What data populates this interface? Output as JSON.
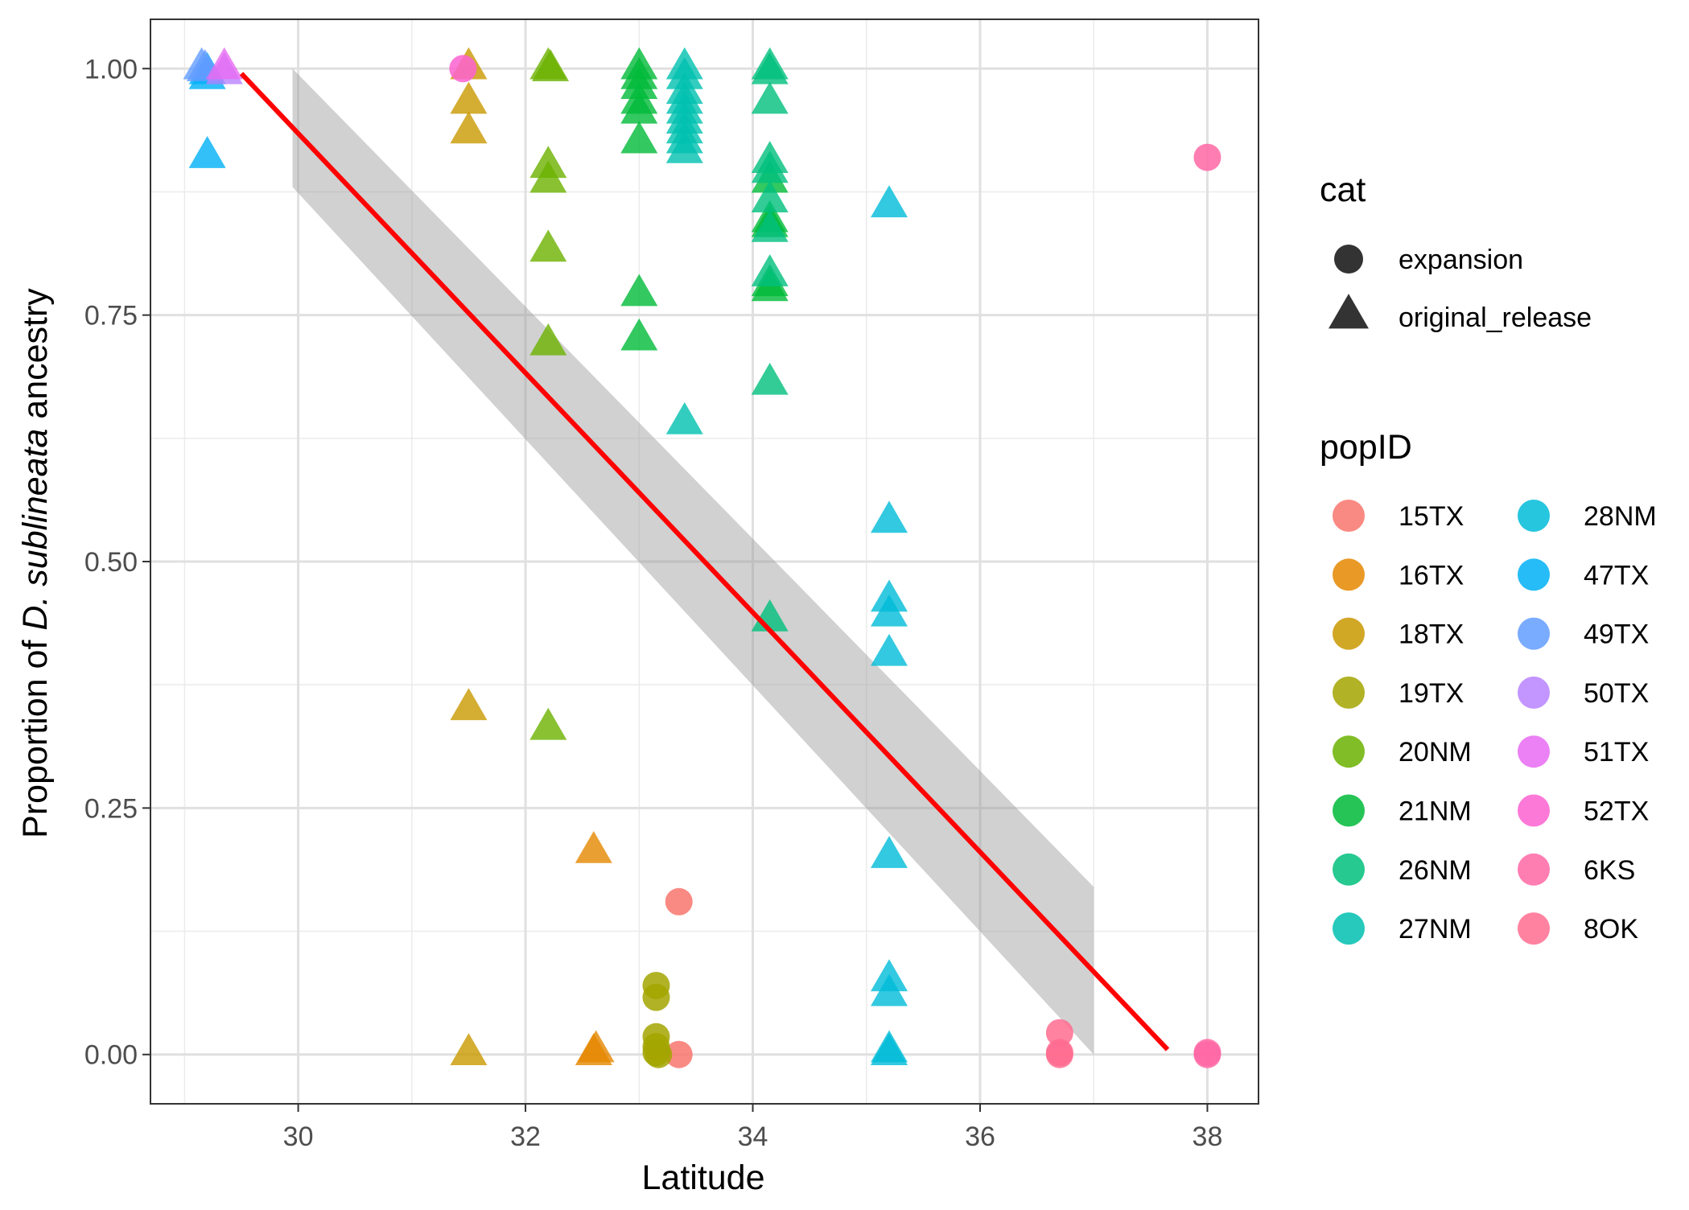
{
  "chart_data": {
    "type": "scatter",
    "title": "",
    "xlabel": "Latitude",
    "ylabel_prefix": "Proportion of ",
    "ylabel_species": "D. sublineata",
    "ylabel_suffix": " ancestry",
    "xlim": [
      28.7,
      38.45
    ],
    "ylim": [
      -0.05,
      1.05
    ],
    "x_ticks": [
      30,
      32,
      34,
      36,
      38
    ],
    "x_minor_ticks": [
      29,
      31,
      33,
      35,
      37
    ],
    "y_ticks": [
      0,
      0.25,
      0.5,
      0.75,
      1
    ],
    "y_minor_ticks": [
      0.125,
      0.375,
      0.625,
      0.875
    ],
    "x_tick_labels": [
      "30",
      "32",
      "34",
      "36",
      "38"
    ],
    "y_tick_labels": [
      "0.00",
      "0.25",
      "0.50",
      "0.75",
      "1.00"
    ],
    "grid": true,
    "legend_cat": {
      "title": "cat",
      "entries": [
        {
          "label": "expansion",
          "shape": "circle"
        },
        {
          "label": "original_release",
          "shape": "triangle"
        }
      ]
    },
    "legend_pop": {
      "title": "popID",
      "entries": [
        {
          "label": "15TX",
          "color": "#F8766D"
        },
        {
          "label": "16TX",
          "color": "#E58700"
        },
        {
          "label": "18TX",
          "color": "#C99800"
        },
        {
          "label": "19TX",
          "color": "#A3A500"
        },
        {
          "label": "20NM",
          "color": "#6BB100"
        },
        {
          "label": "21NM",
          "color": "#00BA38"
        },
        {
          "label": "26NM",
          "color": "#00BF7D"
        },
        {
          "label": "27NM",
          "color": "#00C0AF"
        },
        {
          "label": "28NM",
          "color": "#00BCD8"
        },
        {
          "label": "47TX",
          "color": "#00B0F6"
        },
        {
          "label": "49TX",
          "color": "#619CFF"
        },
        {
          "label": "50TX",
          "color": "#B983FF"
        },
        {
          "label": "51TX",
          "color": "#E76BF3"
        },
        {
          "label": "52TX",
          "color": "#FD61D1"
        },
        {
          "label": "6KS",
          "color": "#FF67A4"
        },
        {
          "label": "8OK",
          "color": "#FF6C91"
        }
      ]
    },
    "regression": {
      "x_start": 29.5,
      "y_start": 0.995,
      "x_end": 37.65,
      "y_end": 0.005,
      "ci_band": [
        {
          "x": 29.95,
          "lo": 0.88,
          "hi": 1.0
        },
        {
          "x": 37.0,
          "lo": 0.0,
          "hi": 0.17
        }
      ],
      "color": "#FF0000"
    },
    "series": [
      {
        "name": "15TX",
        "color": "#F8766D",
        "points": [
          {
            "x": 33.35,
            "y": 0.155,
            "shape": "circle"
          },
          {
            "x": 33.35,
            "y": 0.0,
            "shape": "circle"
          }
        ]
      },
      {
        "name": "16TX",
        "color": "#E58700",
        "points": [
          {
            "x": 32.6,
            "y": 0.205,
            "shape": "triangle"
          },
          {
            "x": 32.6,
            "y": 0.0,
            "shape": "triangle"
          },
          {
            "x": 32.62,
            "y": 0.003,
            "shape": "triangle"
          }
        ]
      },
      {
        "name": "18TX",
        "color": "#C99800",
        "points": [
          {
            "x": 31.5,
            "y": 1.0,
            "shape": "triangle"
          },
          {
            "x": 31.5,
            "y": 0.965,
            "shape": "triangle"
          },
          {
            "x": 31.5,
            "y": 0.935,
            "shape": "triangle"
          },
          {
            "x": 31.5,
            "y": 0.35,
            "shape": "triangle"
          },
          {
            "x": 31.5,
            "y": 0.0,
            "shape": "triangle"
          }
        ]
      },
      {
        "name": "19TX",
        "color": "#A3A500",
        "points": [
          {
            "x": 33.15,
            "y": 0.07,
            "shape": "circle"
          },
          {
            "x": 33.15,
            "y": 0.058,
            "shape": "circle"
          },
          {
            "x": 33.15,
            "y": 0.018,
            "shape": "circle"
          },
          {
            "x": 33.15,
            "y": 0.008,
            "shape": "circle"
          },
          {
            "x": 33.15,
            "y": 0.002,
            "shape": "circle"
          },
          {
            "x": 33.17,
            "y": 0.0,
            "shape": "circle"
          }
        ]
      },
      {
        "name": "20NM",
        "color": "#6BB100",
        "points": [
          {
            "x": 32.2,
            "y": 1.0,
            "shape": "triangle"
          },
          {
            "x": 32.22,
            "y": 0.998,
            "shape": "triangle"
          },
          {
            "x": 32.2,
            "y": 0.9,
            "shape": "triangle"
          },
          {
            "x": 32.2,
            "y": 0.885,
            "shape": "triangle"
          },
          {
            "x": 32.2,
            "y": 0.815,
            "shape": "triangle"
          },
          {
            "x": 32.2,
            "y": 0.72,
            "shape": "triangle"
          },
          {
            "x": 32.2,
            "y": 0.33,
            "shape": "triangle"
          }
        ]
      },
      {
        "name": "21NM",
        "color": "#00BA38",
        "points": [
          {
            "x": 33.0,
            "y": 1.0,
            "shape": "triangle"
          },
          {
            "x": 33.0,
            "y": 0.99,
            "shape": "triangle"
          },
          {
            "x": 33.0,
            "y": 0.98,
            "shape": "triangle"
          },
          {
            "x": 33.0,
            "y": 0.965,
            "shape": "triangle"
          },
          {
            "x": 33.0,
            "y": 0.955,
            "shape": "triangle"
          },
          {
            "x": 33.0,
            "y": 0.925,
            "shape": "triangle"
          },
          {
            "x": 33.0,
            "y": 0.77,
            "shape": "triangle"
          },
          {
            "x": 33.0,
            "y": 0.725,
            "shape": "triangle"
          },
          {
            "x": 34.15,
            "y": 0.885,
            "shape": "triangle"
          },
          {
            "x": 34.15,
            "y": 0.845,
            "shape": "triangle"
          },
          {
            "x": 34.15,
            "y": 0.84,
            "shape": "triangle"
          },
          {
            "x": 34.15,
            "y": 0.78,
            "shape": "triangle"
          },
          {
            "x": 34.15,
            "y": 0.775,
            "shape": "triangle"
          }
        ]
      },
      {
        "name": "26NM",
        "color": "#00BF7D",
        "points": [
          {
            "x": 34.15,
            "y": 1.0,
            "shape": "triangle"
          },
          {
            "x": 34.15,
            "y": 0.995,
            "shape": "triangle"
          },
          {
            "x": 34.15,
            "y": 0.965,
            "shape": "triangle"
          },
          {
            "x": 34.15,
            "y": 0.905,
            "shape": "triangle"
          },
          {
            "x": 34.15,
            "y": 0.895,
            "shape": "triangle"
          },
          {
            "x": 34.15,
            "y": 0.865,
            "shape": "triangle"
          },
          {
            "x": 34.15,
            "y": 0.835,
            "shape": "triangle"
          },
          {
            "x": 34.15,
            "y": 0.79,
            "shape": "triangle"
          },
          {
            "x": 34.15,
            "y": 0.68,
            "shape": "triangle"
          },
          {
            "x": 34.15,
            "y": 0.44,
            "shape": "triangle"
          }
        ]
      },
      {
        "name": "27NM",
        "color": "#00C0AF",
        "points": [
          {
            "x": 33.4,
            "y": 1.0,
            "shape": "triangle"
          },
          {
            "x": 33.4,
            "y": 0.99,
            "shape": "triangle"
          },
          {
            "x": 33.4,
            "y": 0.975,
            "shape": "triangle"
          },
          {
            "x": 33.4,
            "y": 0.965,
            "shape": "triangle"
          },
          {
            "x": 33.4,
            "y": 0.955,
            "shape": "triangle"
          },
          {
            "x": 33.4,
            "y": 0.945,
            "shape": "triangle"
          },
          {
            "x": 33.4,
            "y": 0.935,
            "shape": "triangle"
          },
          {
            "x": 33.4,
            "y": 0.925,
            "shape": "triangle"
          },
          {
            "x": 33.4,
            "y": 0.915,
            "shape": "triangle"
          },
          {
            "x": 33.4,
            "y": 0.64,
            "shape": "triangle"
          }
        ]
      },
      {
        "name": "28NM",
        "color": "#00BCD8",
        "points": [
          {
            "x": 35.2,
            "y": 0.86,
            "shape": "triangle"
          },
          {
            "x": 35.2,
            "y": 0.54,
            "shape": "triangle"
          },
          {
            "x": 35.2,
            "y": 0.46,
            "shape": "triangle"
          },
          {
            "x": 35.2,
            "y": 0.445,
            "shape": "triangle"
          },
          {
            "x": 35.2,
            "y": 0.405,
            "shape": "triangle"
          },
          {
            "x": 35.2,
            "y": 0.2,
            "shape": "triangle"
          },
          {
            "x": 35.2,
            "y": 0.075,
            "shape": "triangle"
          },
          {
            "x": 35.2,
            "y": 0.06,
            "shape": "triangle"
          },
          {
            "x": 35.2,
            "y": 0.003,
            "shape": "triangle"
          },
          {
            "x": 35.2,
            "y": 0.0,
            "shape": "triangle"
          }
        ]
      },
      {
        "name": "47TX",
        "color": "#00B0F6",
        "points": [
          {
            "x": 29.2,
            "y": 0.995,
            "shape": "triangle"
          },
          {
            "x": 29.2,
            "y": 0.99,
            "shape": "triangle"
          },
          {
            "x": 29.2,
            "y": 0.91,
            "shape": "triangle"
          }
        ]
      },
      {
        "name": "49TX",
        "color": "#619CFF",
        "points": [
          {
            "x": 29.15,
            "y": 1.0,
            "shape": "triangle"
          },
          {
            "x": 29.18,
            "y": 0.998,
            "shape": "triangle"
          }
        ]
      },
      {
        "name": "50TX",
        "color": "#B983FF",
        "points": [
          {
            "x": 29.35,
            "y": 0.995,
            "shape": "triangle"
          }
        ]
      },
      {
        "name": "51TX",
        "color": "#E76BF3",
        "points": [
          {
            "x": 29.35,
            "y": 1.0,
            "shape": "triangle"
          }
        ]
      },
      {
        "name": "52TX",
        "color": "#FD61D1",
        "points": [
          {
            "x": 31.45,
            "y": 1.0,
            "shape": "circle"
          }
        ]
      },
      {
        "name": "6KS",
        "color": "#FF67A4",
        "points": [
          {
            "x": 38.0,
            "y": 0.91,
            "shape": "circle"
          },
          {
            "x": 38.0,
            "y": 0.0,
            "shape": "circle"
          },
          {
            "x": 38.0,
            "y": 0.002,
            "shape": "circle"
          }
        ]
      },
      {
        "name": "8OK",
        "color": "#FF6C91",
        "points": [
          {
            "x": 36.7,
            "y": 0.022,
            "shape": "circle"
          },
          {
            "x": 36.7,
            "y": 0.0,
            "shape": "circle"
          },
          {
            "x": 36.7,
            "y": 0.002,
            "shape": "circle"
          }
        ]
      }
    ]
  }
}
